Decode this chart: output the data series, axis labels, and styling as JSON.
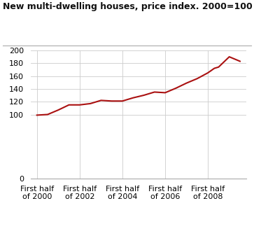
{
  "title": "New multi-dwelling houses, price index. 2000=100",
  "line_color": "#aa1111",
  "line_width": 1.5,
  "background_color": "#ffffff",
  "grid_color": "#cccccc",
  "ylim": [
    0,
    200
  ],
  "yticks": [
    0,
    100,
    120,
    140,
    160,
    180,
    200
  ],
  "xtick_labels": [
    "First half\nof 2000",
    "First half\nof 2002",
    "First half\nof 2004",
    "First half\nof 2006",
    "First half\nof 2008"
  ],
  "xtick_positions": [
    0,
    2,
    4,
    6,
    8
  ],
  "xf": [
    0,
    0.5,
    1,
    1.5,
    2,
    2.5,
    3,
    3.5,
    4,
    4.5,
    5,
    5.5,
    6,
    6.5,
    7,
    7.5,
    8,
    8.3,
    8.5,
    9,
    9.5
  ],
  "yf": [
    99,
    100,
    107,
    115,
    115,
    117,
    122,
    121,
    121,
    126,
    130,
    135,
    134,
    141,
    149,
    156,
    165,
    172,
    174,
    190,
    183
  ],
  "xlim": [
    -0.3,
    9.8
  ]
}
